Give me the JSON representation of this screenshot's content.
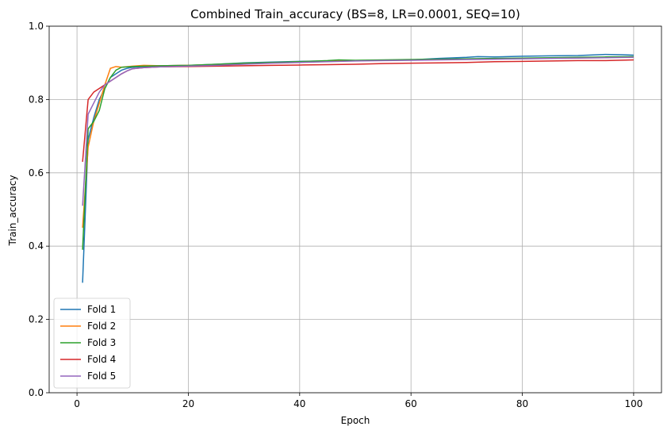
{
  "chart_data": {
    "type": "line",
    "title": "Combined Train_accuracy (BS=8, LR=0.0001, SEQ=10)",
    "xlabel": "Epoch",
    "ylabel": "Train_accuracy",
    "xlim": [
      -5,
      105
    ],
    "ylim": [
      0.0,
      1.0
    ],
    "xticks": [
      0,
      20,
      40,
      60,
      80,
      100
    ],
    "yticks": [
      0.0,
      0.2,
      0.4,
      0.6,
      0.8,
      1.0
    ],
    "xtick_labels": [
      "0",
      "20",
      "40",
      "60",
      "80",
      "100"
    ],
    "ytick_labels": [
      "0.0",
      "0.2",
      "0.4",
      "0.6",
      "0.8",
      "1.0"
    ],
    "grid": true,
    "legend_position": "lower-left",
    "series": [
      {
        "name": "Fold 1",
        "color": "#1f77b4",
        "points": [
          [
            1,
            0.3
          ],
          [
            2,
            0.69
          ],
          [
            3,
            0.75
          ],
          [
            4,
            0.8
          ],
          [
            5,
            0.83
          ],
          [
            6,
            0.86
          ],
          [
            7,
            0.87
          ],
          [
            8,
            0.88
          ],
          [
            9,
            0.885
          ],
          [
            10,
            0.888
          ],
          [
            12,
            0.89
          ],
          [
            15,
            0.892
          ],
          [
            20,
            0.893
          ],
          [
            25,
            0.896
          ],
          [
            30,
            0.9
          ],
          [
            35,
            0.902
          ],
          [
            40,
            0.904
          ],
          [
            45,
            0.905
          ],
          [
            50,
            0.906
          ],
          [
            55,
            0.907
          ],
          [
            60,
            0.908
          ],
          [
            65,
            0.912
          ],
          [
            70,
            0.915
          ],
          [
            72,
            0.917
          ],
          [
            75,
            0.916
          ],
          [
            80,
            0.918
          ],
          [
            85,
            0.919
          ],
          [
            90,
            0.92
          ],
          [
            95,
            0.923
          ],
          [
            98,
            0.922
          ],
          [
            100,
            0.921
          ]
        ]
      },
      {
        "name": "Fold 2",
        "color": "#ff7f0e",
        "points": [
          [
            1,
            0.45
          ],
          [
            2,
            0.67
          ],
          [
            3,
            0.74
          ],
          [
            4,
            0.79
          ],
          [
            5,
            0.84
          ],
          [
            6,
            0.885
          ],
          [
            7,
            0.89
          ],
          [
            8,
            0.888
          ],
          [
            10,
            0.891
          ],
          [
            12,
            0.893
          ],
          [
            15,
            0.892
          ],
          [
            20,
            0.893
          ],
          [
            25,
            0.895
          ],
          [
            30,
            0.898
          ],
          [
            35,
            0.9
          ],
          [
            40,
            0.903
          ],
          [
            45,
            0.905
          ],
          [
            50,
            0.906
          ],
          [
            55,
            0.907
          ],
          [
            60,
            0.908
          ],
          [
            65,
            0.909
          ],
          [
            70,
            0.91
          ],
          [
            75,
            0.911
          ],
          [
            80,
            0.912
          ],
          [
            85,
            0.913
          ],
          [
            90,
            0.914
          ],
          [
            95,
            0.915
          ],
          [
            100,
            0.916
          ]
        ]
      },
      {
        "name": "Fold 3",
        "color": "#2ca02c",
        "points": [
          [
            1,
            0.39
          ],
          [
            2,
            0.72
          ],
          [
            3,
            0.74
          ],
          [
            4,
            0.77
          ],
          [
            5,
            0.83
          ],
          [
            6,
            0.86
          ],
          [
            7,
            0.88
          ],
          [
            8,
            0.888
          ],
          [
            10,
            0.89
          ],
          [
            12,
            0.891
          ],
          [
            15,
            0.892
          ],
          [
            20,
            0.893
          ],
          [
            25,
            0.896
          ],
          [
            30,
            0.899
          ],
          [
            35,
            0.901
          ],
          [
            40,
            0.903
          ],
          [
            45,
            0.906
          ],
          [
            47,
            0.908
          ],
          [
            50,
            0.907
          ],
          [
            55,
            0.908
          ],
          [
            60,
            0.909
          ],
          [
            65,
            0.91
          ],
          [
            70,
            0.911
          ],
          [
            75,
            0.912
          ],
          [
            80,
            0.913
          ],
          [
            85,
            0.914
          ],
          [
            90,
            0.915
          ],
          [
            95,
            0.916
          ],
          [
            100,
            0.917
          ]
        ]
      },
      {
        "name": "Fold 4",
        "color": "#d62728",
        "points": [
          [
            1,
            0.63
          ],
          [
            2,
            0.8
          ],
          [
            3,
            0.82
          ],
          [
            4,
            0.83
          ],
          [
            5,
            0.84
          ],
          [
            6,
            0.85
          ],
          [
            7,
            0.86
          ],
          [
            8,
            0.87
          ],
          [
            9,
            0.878
          ],
          [
            10,
            0.884
          ],
          [
            12,
            0.887
          ],
          [
            15,
            0.889
          ],
          [
            20,
            0.89
          ],
          [
            25,
            0.891
          ],
          [
            30,
            0.892
          ],
          [
            35,
            0.893
          ],
          [
            40,
            0.894
          ],
          [
            45,
            0.895
          ],
          [
            50,
            0.896
          ],
          [
            55,
            0.898
          ],
          [
            60,
            0.899
          ],
          [
            65,
            0.9
          ],
          [
            70,
            0.901
          ],
          [
            75,
            0.903
          ],
          [
            80,
            0.904
          ],
          [
            85,
            0.905
          ],
          [
            90,
            0.906
          ],
          [
            95,
            0.906
          ],
          [
            100,
            0.908
          ]
        ]
      },
      {
        "name": "Fold 5",
        "color": "#9467bd",
        "points": [
          [
            1,
            0.51
          ],
          [
            2,
            0.76
          ],
          [
            3,
            0.79
          ],
          [
            4,
            0.82
          ],
          [
            5,
            0.84
          ],
          [
            6,
            0.85
          ],
          [
            7,
            0.86
          ],
          [
            8,
            0.87
          ],
          [
            9,
            0.878
          ],
          [
            10,
            0.884
          ],
          [
            12,
            0.887
          ],
          [
            15,
            0.889
          ],
          [
            20,
            0.891
          ],
          [
            25,
            0.893
          ],
          [
            30,
            0.896
          ],
          [
            35,
            0.899
          ],
          [
            40,
            0.901
          ],
          [
            45,
            0.903
          ],
          [
            50,
            0.905
          ],
          [
            55,
            0.906
          ],
          [
            60,
            0.907
          ],
          [
            65,
            0.908
          ],
          [
            70,
            0.909
          ],
          [
            75,
            0.91
          ],
          [
            80,
            0.911
          ],
          [
            85,
            0.912
          ],
          [
            90,
            0.913
          ],
          [
            95,
            0.914
          ],
          [
            100,
            0.915
          ]
        ]
      }
    ]
  }
}
